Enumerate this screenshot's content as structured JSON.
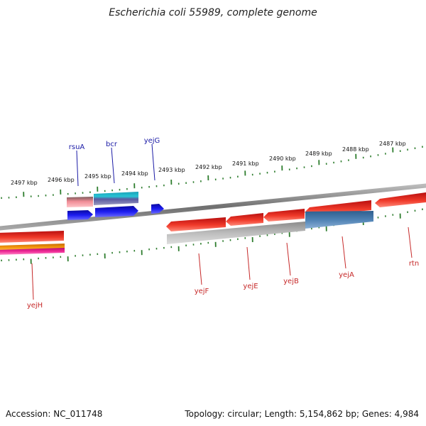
{
  "title": "Escherichia coli 55989, complete genome",
  "footer": {
    "accession": "Accession: NC_011748",
    "summary": "Topology: circular; Length: 5,154,862 bp; Genes: 4,984"
  },
  "colors": {
    "backbone": "#888888",
    "tick": "#2e7d2e",
    "top_label": "#1a1aa6",
    "bottom_label": "#c62828",
    "red": "#e8281e",
    "blue": "#1414e6",
    "grey": "#b4b4b4",
    "steel": "#4f82b4",
    "orange": "#f0900a",
    "magenta": "#e61e8c",
    "pink": "#f08c96",
    "cyan": "#28b4c8"
  },
  "kbp_labels": [
    "2497 kbp",
    "2496 kbp",
    "2495 kbp",
    "2494 kbp",
    "2493 kbp",
    "2492 kbp",
    "2491 kbp",
    "2490 kbp",
    "2489 kbp",
    "2488 kbp",
    "2487 kbp"
  ],
  "top_genes": [
    "rsuA",
    "bcr",
    "yejG"
  ],
  "bottom_genes": [
    "yejH",
    "yejF",
    "yejE",
    "yejB",
    "yejA",
    "rtn"
  ]
}
